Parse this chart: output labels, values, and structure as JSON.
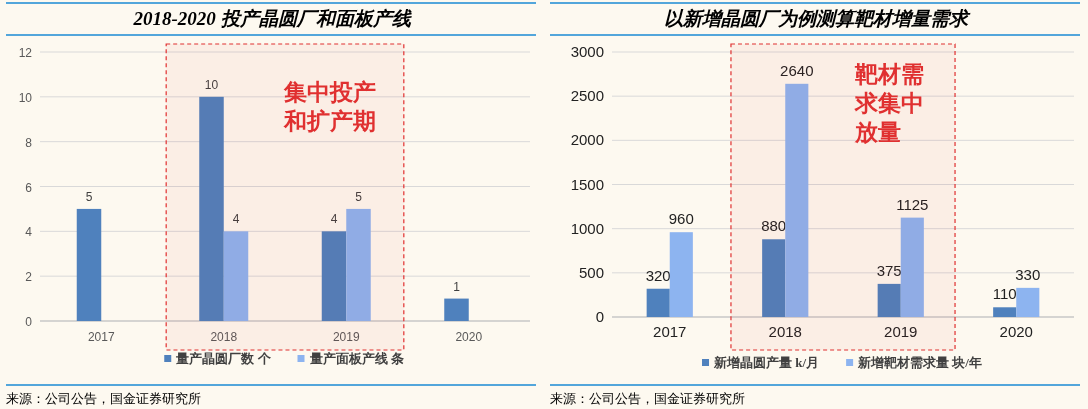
{
  "chart_data": [
    {
      "type": "bar",
      "title": "2018-2020 投产晶圆厂和面板产线",
      "categories": [
        "2017",
        "2018",
        "2019",
        "2020"
      ],
      "series": [
        {
          "name": "量产晶圆厂数 个",
          "color": "#4f81bd",
          "values": [
            5,
            10,
            4,
            1
          ]
        },
        {
          "name": "量产面板产线 条",
          "color": "#8db4f0",
          "values": [
            null,
            4,
            5,
            null
          ]
        }
      ],
      "ylim": [
        0,
        12
      ],
      "yticks": [
        0,
        2,
        4,
        6,
        8,
        10,
        12
      ],
      "grid": "y",
      "legend": "bottom",
      "data_labels": true,
      "bands": [
        {
          "axis": "x",
          "from": "2018",
          "to": "2019",
          "label": "集中投产和扩产期",
          "color": "#e03030"
        }
      ],
      "annotations": [
        "来源：公司公告，国金证券研究所"
      ]
    },
    {
      "type": "bar",
      "title": "以新增晶圆厂为例测算靶材增量需求",
      "categories": [
        "2017",
        "2018",
        "2019",
        "2020"
      ],
      "series": [
        {
          "name": "新增晶圆产量 k/月",
          "color": "#4f81bd",
          "values": [
            320,
            880,
            375,
            110
          ]
        },
        {
          "name": "新增靶材需求量 块/年",
          "color": "#8db4f0",
          "values": [
            960,
            2640,
            1125,
            330
          ]
        }
      ],
      "ylim": [
        0,
        3000
      ],
      "yticks": [
        0,
        500,
        1000,
        1500,
        2000,
        2500,
        3000
      ],
      "grid": "y",
      "legend": "bottom",
      "data_labels": true,
      "bands": [
        {
          "axis": "x",
          "from": "2018",
          "to": "2019",
          "label": "靶材需求集中放量",
          "color": "#e03030"
        }
      ],
      "annotations": [
        "来源：公司公告，国金证券研究所"
      ]
    }
  ]
}
